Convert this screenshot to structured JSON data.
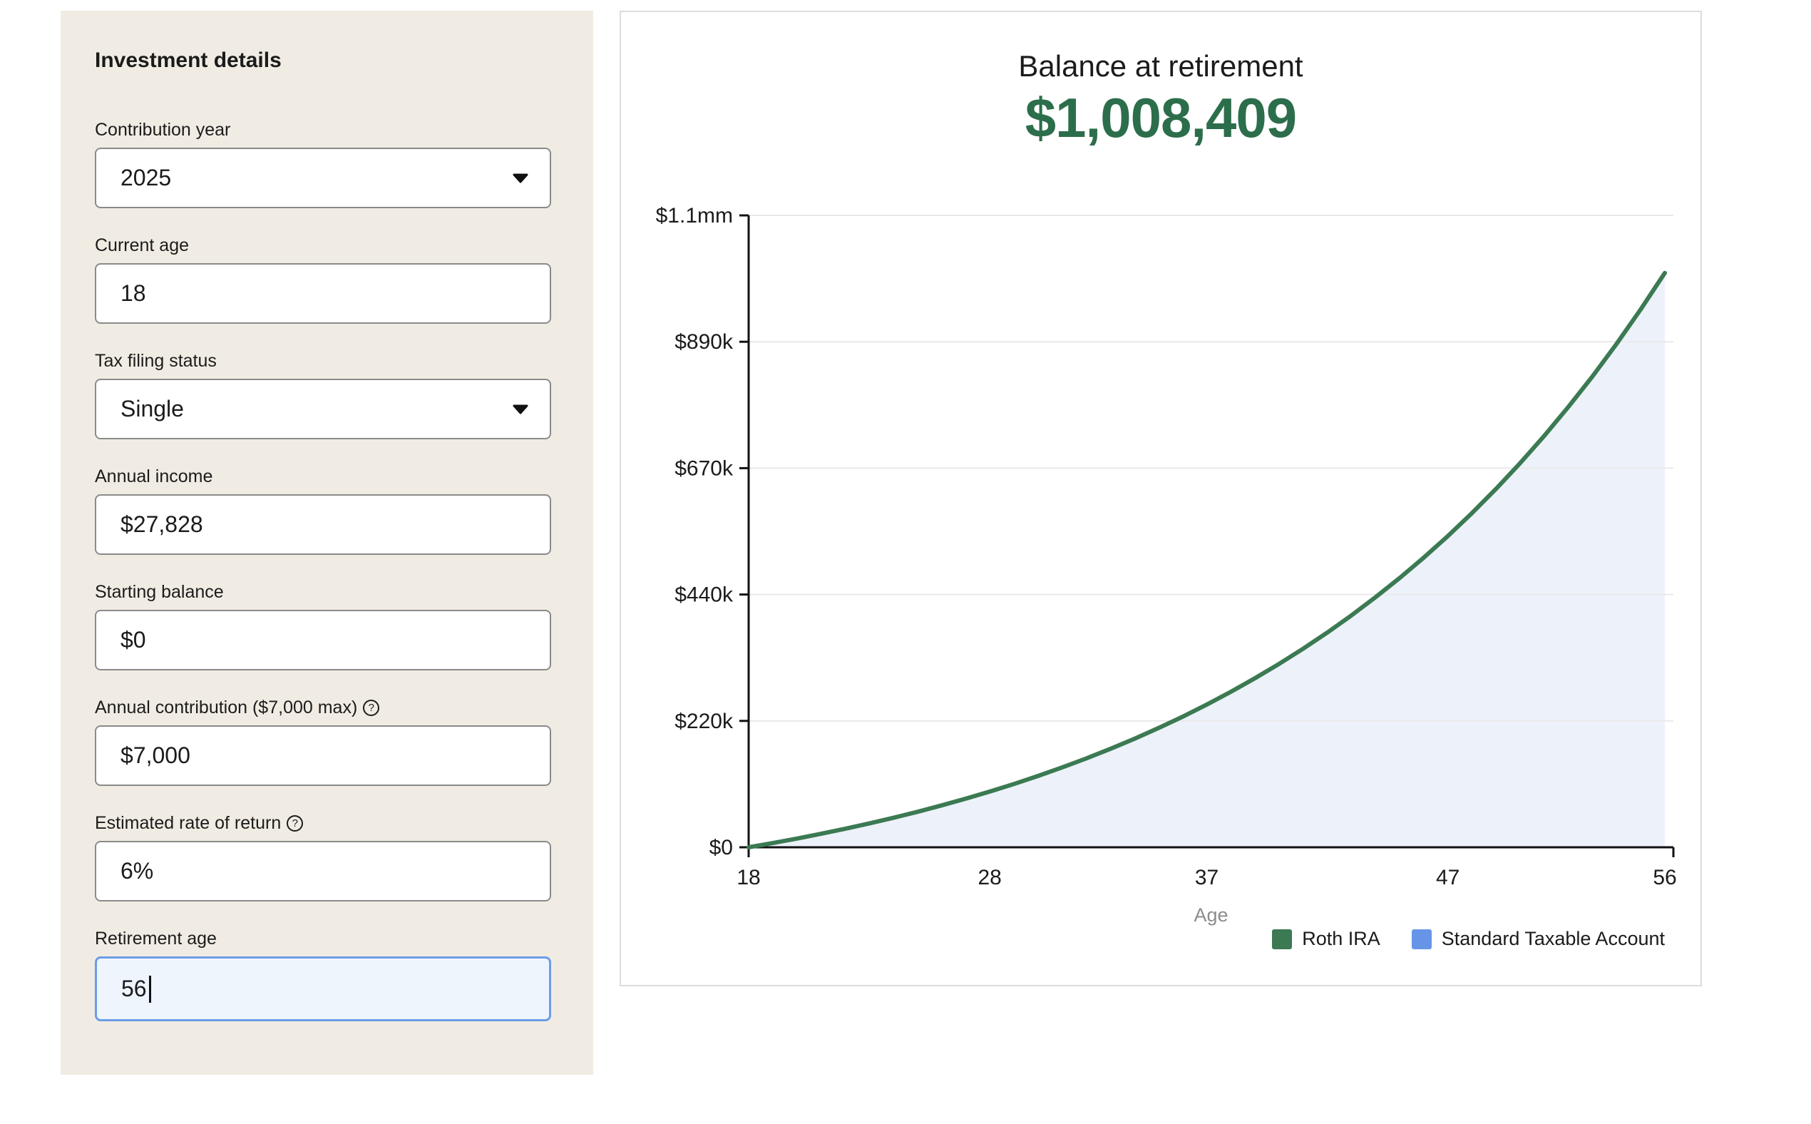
{
  "sidebar": {
    "title": "Investment details",
    "fields": [
      {
        "label": "Contribution year",
        "value": "2025",
        "type": "select"
      },
      {
        "label": "Current age",
        "value": "18",
        "type": "text"
      },
      {
        "label": "Tax filing status",
        "value": "Single",
        "type": "select"
      },
      {
        "label": "Annual income",
        "value": "$27,828",
        "type": "text"
      },
      {
        "label": "Starting balance",
        "value": "$0",
        "type": "text"
      },
      {
        "label": "Annual contribution ($7,000 max)",
        "value": "$7,000",
        "type": "text",
        "help_icon": "?"
      },
      {
        "label": "Estimated rate of return",
        "value": "6%",
        "type": "text",
        "help_icon": "?"
      },
      {
        "label": "Retirement age",
        "value": "56",
        "type": "text",
        "focused": true
      }
    ]
  },
  "colors": {
    "sidebar_bg": "#f1ece3",
    "focus_border": "#6c9ce8",
    "focus_bg": "#eef5fd",
    "amount_green": "#2c6e4b",
    "roth_green": "#3b7a52",
    "taxable_blue": "#6695e8",
    "area_fill": "#edf1fa"
  },
  "chart_data": {
    "type": "area",
    "title": "Balance at retirement",
    "balance": "$1,008,409",
    "xlabel": "Age",
    "xlim": [
      18,
      56
    ],
    "ylim": [
      0,
      1109400
    ],
    "grid": true,
    "legend_position": "bottom-right",
    "y_ticks": [
      {
        "value": 0,
        "label": "$0"
      },
      {
        "value": 221880,
        "label": "$220k"
      },
      {
        "value": 443760,
        "label": "$440k"
      },
      {
        "value": 665640,
        "label": "$670k"
      },
      {
        "value": 887520,
        "label": "$890k"
      },
      {
        "value": 1109400,
        "label": "$1.1mm"
      }
    ],
    "x_ticks": [
      18,
      28,
      37,
      47,
      56
    ],
    "series": [
      {
        "name": "Roth IRA",
        "color": "#3b7a52",
        "area_fill": "#edf1fa",
        "x": [
          18,
          19,
          20,
          21,
          22,
          23,
          24,
          25,
          26,
          27,
          28,
          29,
          30,
          31,
          32,
          33,
          34,
          35,
          36,
          37,
          38,
          39,
          40,
          41,
          42,
          43,
          44,
          45,
          46,
          47,
          48,
          49,
          50,
          51,
          52,
          53,
          54,
          55,
          56
        ],
        "values": [
          0,
          7420,
          15285,
          23622,
          32460,
          41827,
          51757,
          62282,
          73439,
          85265,
          97801,
          111090,
          125175,
          140106,
          155932,
          172708,
          190490,
          209340,
          229320,
          250499,
          272949,
          296746,
          321971,
          348709,
          377052,
          407095,
          438965,
          472723,
          508556,
          546490,
          586699,
          629321,
          674499,
          722389,
          773153,
          826962,
          884002,
          944460,
          1008409
        ]
      }
    ],
    "legend": [
      {
        "label": "Roth IRA",
        "color": "#3b7a52"
      },
      {
        "label": "Standard Taxable Account",
        "color": "#6695e8"
      }
    ]
  }
}
